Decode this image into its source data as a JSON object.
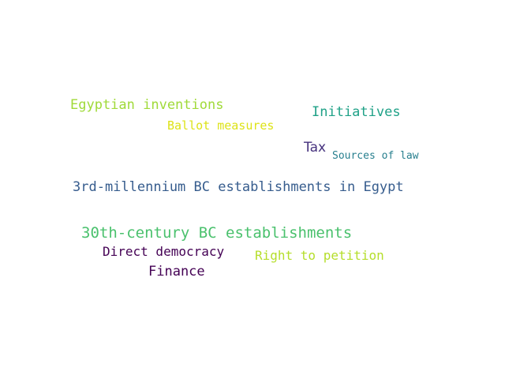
{
  "words": [
    {
      "text": "Egyptian inventions",
      "color": "#a0da39"
    },
    {
      "text": "Initiatives",
      "color": "#1fa187"
    },
    {
      "text": "Ballot measures",
      "color": "#dde318"
    },
    {
      "text": "Tax",
      "color": "#46327e"
    },
    {
      "text": "Sources of law",
      "color": "#277f8e"
    },
    {
      "text": "3rd-millennium BC establishments in Egypt",
      "color": "#365c8d"
    },
    {
      "text": "30th-century BC establishments",
      "color": "#4ac16d"
    },
    {
      "text": "Direct democracy",
      "color": "#440154"
    },
    {
      "text": "Right to petition",
      "color": "#b5de2b"
    },
    {
      "text": "Finance",
      "color": "#440154"
    }
  ]
}
